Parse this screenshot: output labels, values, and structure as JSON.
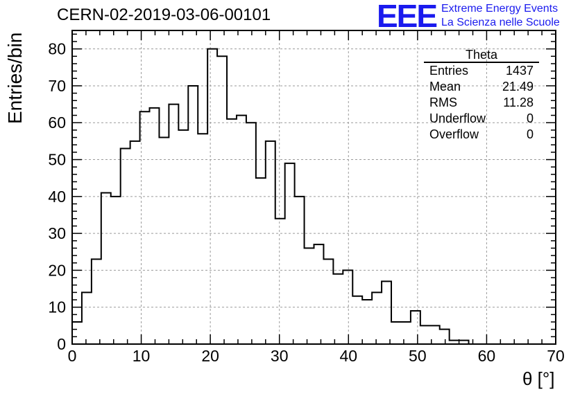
{
  "header": {
    "title": "CERN-02-2019-03-06-00101",
    "logo_mark": "EEE",
    "logo_line1": "Extreme Energy Events",
    "logo_line2": "La Scienza nelle Scuole"
  },
  "stats": {
    "name": "Theta",
    "rows": [
      {
        "label": "Entries",
        "value": "1437"
      },
      {
        "label": "Mean",
        "value": "21.49"
      },
      {
        "label": "RMS",
        "value": "11.28"
      },
      {
        "label": "Underflow",
        "value": "0"
      },
      {
        "label": "Overflow",
        "value": "0"
      }
    ]
  },
  "colors": {
    "logo": "#1a1aee",
    "line": "#000000",
    "grid": "#9a9a9a"
  },
  "chart_data": {
    "type": "bar",
    "style": "step-histogram",
    "xlabel": "θ [°]",
    "ylabel": "Entries/bin",
    "xlim": [
      0,
      70
    ],
    "ylim": [
      0,
      85
    ],
    "grid": true,
    "bin_width": 1.4,
    "x_ticks": [
      0,
      10,
      20,
      30,
      40,
      50,
      60,
      70
    ],
    "y_ticks": [
      0,
      10,
      20,
      30,
      40,
      50,
      60,
      70,
      80
    ],
    "values": [
      6,
      14,
      23,
      41,
      40,
      53,
      55,
      63,
      64,
      56,
      65,
      58,
      70,
      57,
      80,
      78,
      61,
      62,
      60,
      45,
      55,
      34,
      49,
      40,
      26,
      27,
      23,
      19,
      20,
      13,
      12,
      14,
      17,
      6,
      6,
      9,
      5,
      5,
      4,
      1,
      1,
      0,
      0,
      0,
      0,
      0,
      0,
      0,
      0,
      0
    ]
  }
}
